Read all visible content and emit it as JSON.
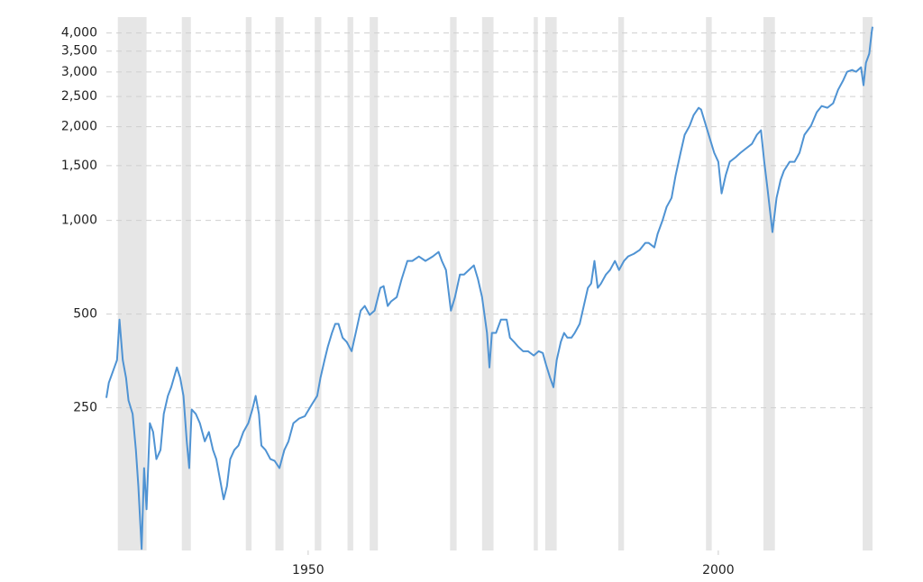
{
  "chart_data": {
    "type": "line",
    "log_scale": true,
    "grid": true,
    "color": "#4f93d3",
    "recession_color": "#e6e6e6",
    "xlim": [
      1925.4,
      2018.8
    ],
    "xticks": [
      1950,
      2000
    ],
    "ylim": [
      87,
      4500
    ],
    "yticks": [
      250,
      500,
      {
        "value": 1000,
        "label": "1,000"
      },
      {
        "value": 1500,
        "label": "1,500"
      },
      {
        "value": 2000,
        "label": "2,000"
      },
      {
        "value": 2500,
        "label": "2,500"
      },
      {
        "value": 3000,
        "label": "3,000"
      },
      {
        "value": 3500,
        "label": "3,500"
      },
      {
        "value": 4000,
        "label": "4,000"
      }
    ],
    "recessions": [
      [
        1926.8,
        1930.3
      ],
      [
        1934.6,
        1935.7
      ],
      [
        1942.4,
        1943.1
      ],
      [
        1946.0,
        1947.0
      ],
      [
        1950.8,
        1951.6
      ],
      [
        1954.8,
        1955.5
      ],
      [
        1957.5,
        1958.5
      ],
      [
        1967.3,
        1968.1
      ],
      [
        1971.2,
        1972.6
      ],
      [
        1977.5,
        1978.0
      ],
      [
        1978.9,
        1980.3
      ],
      [
        1987.8,
        1988.5
      ],
      [
        1998.5,
        1999.2
      ],
      [
        2005.5,
        2006.9
      ],
      [
        2017.6,
        2018.8
      ]
    ],
    "x": [
      1925.4,
      1925.7,
      1926.7,
      1927.0,
      1927.4,
      1927.8,
      1928.1,
      1928.6,
      1929.0,
      1929.3,
      1929.7,
      1930.0,
      1930.3,
      1930.7,
      1931.1,
      1931.5,
      1932.0,
      1932.4,
      1932.9,
      1933.3,
      1934.0,
      1934.4,
      1934.8,
      1935.2,
      1935.5,
      1935.8,
      1936.3,
      1936.8,
      1937.4,
      1937.9,
      1938.4,
      1938.8,
      1939.3,
      1939.7,
      1940.1,
      1940.5,
      1941.0,
      1941.5,
      1942.1,
      1942.7,
      1943.2,
      1943.6,
      1944.0,
      1944.3,
      1944.8,
      1945.4,
      1945.9,
      1946.5,
      1947.1,
      1947.6,
      1948.2,
      1948.9,
      1949.6,
      1950.4,
      1951.1,
      1951.5,
      1952.0,
      1952.4,
      1952.9,
      1953.3,
      1953.7,
      1954.2,
      1954.7,
      1955.3,
      1955.8,
      1956.4,
      1956.9,
      1957.5,
      1958.1,
      1958.8,
      1959.2,
      1959.7,
      1960.1,
      1960.8,
      1961.4,
      1962.1,
      1962.7,
      1963.5,
      1964.3,
      1965.2,
      1965.9,
      1966.3,
      1966.8,
      1967.4,
      1967.9,
      1968.5,
      1969.0,
      1969.6,
      1970.2,
      1970.7,
      1971.2,
      1971.8,
      1972.1,
      1972.4,
      1972.9,
      1973.5,
      1974.2,
      1974.6,
      1975.1,
      1975.6,
      1976.2,
      1976.8,
      1977.5,
      1978.1,
      1978.6,
      1979.0,
      1979.5,
      1979.9,
      1980.3,
      1980.8,
      1981.2,
      1981.6,
      1982.1,
      1982.5,
      1983.1,
      1983.6,
      1984.1,
      1984.5,
      1984.9,
      1985.3,
      1985.7,
      1986.3,
      1986.8,
      1987.4,
      1987.9,
      1988.5,
      1989.0,
      1989.7,
      1990.4,
      1991.1,
      1991.5,
      1992.2,
      1992.6,
      1993.2,
      1993.7,
      1994.3,
      1994.8,
      1995.4,
      1995.9,
      1996.5,
      1997.0,
      1997.6,
      1997.9,
      1998.5,
      1999.0,
      1999.5,
      2000.0,
      2000.4,
      2000.9,
      2001.4,
      2002.1,
      2002.7,
      2003.4,
      2004.1,
      2004.7,
      2005.2,
      2005.6,
      2006.0,
      2006.6,
      2007.1,
      2007.6,
      2008.0,
      2008.7,
      2009.3,
      2009.9,
      2010.5,
      2011.3,
      2012.0,
      2012.6,
      2013.3,
      2014.0,
      2014.6,
      2015.2,
      2015.7,
      2016.3,
      2016.8,
      2017.4,
      2017.7,
      2018.0,
      2018.4,
      2018.7,
      2018.8
    ],
    "values": [
      269,
      301,
      356,
      480,
      356,
      312,
      264,
      239,
      183,
      140,
      88,
      160,
      118,
      223,
      209,
      171,
      183,
      239,
      273,
      291,
      337,
      312,
      273,
      195,
      160,
      247,
      239,
      223,
      195,
      209,
      183,
      171,
      145,
      127,
      140,
      171,
      183,
      189,
      209,
      223,
      247,
      273,
      239,
      189,
      183,
      171,
      169,
      160,
      183,
      195,
      223,
      231,
      235,
      255,
      273,
      312,
      356,
      393,
      435,
      465,
      465,
      420,
      407,
      380,
      435,
      513,
      531,
      497,
      513,
      607,
      615,
      531,
      549,
      567,
      648,
      741,
      741,
      766,
      741,
      766,
      792,
      741,
      693,
      513,
      567,
      670,
      670,
      693,
      717,
      648,
      567,
      435,
      337,
      435,
      435,
      480,
      480,
      420,
      407,
      393,
      380,
      380,
      368,
      380,
      375,
      344,
      312,
      291,
      356,
      407,
      435,
      420,
      420,
      435,
      465,
      531,
      607,
      627,
      741,
      607,
      627,
      670,
      693,
      741,
      693,
      741,
      766,
      781,
      803,
      847,
      847,
      819,
      905,
      1000,
      1105,
      1181,
      1396,
      1649,
      1884,
      2014,
      2181,
      2301,
      2271,
      2014,
      1822,
      1649,
      1543,
      1221,
      1396,
      1543,
      1595,
      1649,
      1705,
      1762,
      1884,
      1948,
      1543,
      1263,
      917,
      1181,
      1350,
      1443,
      1543,
      1543,
      1649,
      1884,
      2014,
      2226,
      2331,
      2301,
      2379,
      2628,
      2810,
      3004,
      3044,
      3004,
      3105,
      2718,
      3210,
      3432,
      4027,
      4190
    ]
  }
}
